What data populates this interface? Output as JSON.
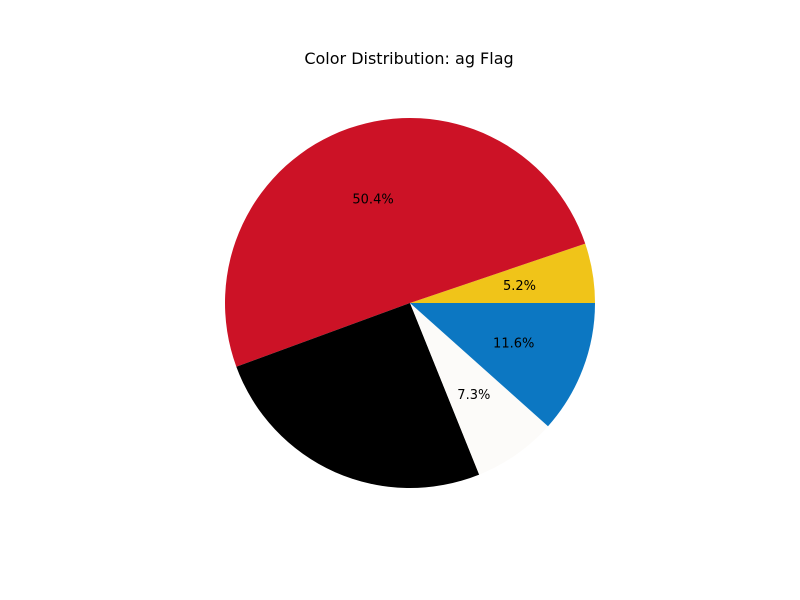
{
  "chart_data": {
    "type": "pie",
    "title": "Color Distribution: ag Flag",
    "slices": [
      {
        "value": 5.2,
        "label": "5.2%",
        "color": "#f0c419"
      },
      {
        "value": 50.4,
        "label": "50.4%",
        "color": "#cc1226"
      },
      {
        "value": 25.5,
        "label": "",
        "color": "#000000"
      },
      {
        "value": 7.3,
        "label": "7.3%",
        "color": "#fcfbf9"
      },
      {
        "value": 11.6,
        "label": "11.6%",
        "color": "#0c77c2"
      }
    ],
    "start_angle_deg": 0,
    "direction": "counterclockwise"
  }
}
